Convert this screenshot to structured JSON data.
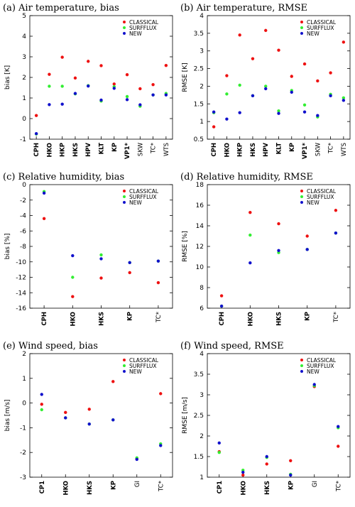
{
  "legend": {
    "entries": [
      {
        "name": "CLASSICAL",
        "color": "#ee1111"
      },
      {
        "name": "SURFFLUX",
        "color": "#33ee33"
      },
      {
        "name": "NEW",
        "color": "#1111cc"
      }
    ]
  },
  "chart_data": [
    {
      "type": "scatter",
      "title": "(a) Air temperature, bias",
      "ylabel": "bias [K]",
      "ylim": [
        -1,
        5
      ],
      "yticks": [
        -1,
        0,
        1,
        2,
        3,
        4,
        5
      ],
      "categories": [
        "CPH",
        "HKO",
        "HKP",
        "HKS",
        "HPV",
        "KLT",
        "KP",
        "VP1*",
        "SKW",
        "TC*",
        "WTS"
      ],
      "bold": [
        true,
        true,
        true,
        true,
        true,
        true,
        true,
        true,
        false,
        false,
        false
      ],
      "series": [
        {
          "name": "CLASSICAL",
          "values": [
            0.15,
            2.15,
            2.98,
            1.97,
            2.78,
            2.57,
            1.68,
            2.13,
            1.45,
            1.65,
            2.58
          ]
        },
        {
          "name": "SURFFLUX",
          "values": [
            -0.75,
            1.57,
            1.57,
            1.2,
            1.6,
            0.85,
            1.55,
            1.07,
            0.6,
            1.15,
            1.22
          ]
        },
        {
          "name": "NEW",
          "values": [
            -0.73,
            0.68,
            0.7,
            1.22,
            1.58,
            0.9,
            1.47,
            0.92,
            0.67,
            1.15,
            1.15
          ]
        }
      ]
    },
    {
      "type": "scatter",
      "title": "(b) Air temperature, RMSE",
      "ylabel": "RMSE [K]",
      "ylim": [
        0.5,
        4
      ],
      "yticks": [
        0.5,
        1,
        1.5,
        2,
        2.5,
        3,
        3.5,
        4
      ],
      "categories": [
        "CPH",
        "HKO",
        "HKP",
        "HKS",
        "HPV",
        "KLT",
        "KP",
        "VP1*",
        "SKW",
        "TC*",
        "WTS"
      ],
      "bold": [
        true,
        true,
        true,
        true,
        true,
        true,
        true,
        true,
        false,
        false,
        false
      ],
      "series": [
        {
          "name": "CLASSICAL",
          "values": [
            0.85,
            2.3,
            3.45,
            2.78,
            3.58,
            3.02,
            2.28,
            2.63,
            2.15,
            2.38,
            3.25
          ]
        },
        {
          "name": "SURFFLUX",
          "values": [
            1.25,
            1.78,
            2.03,
            1.73,
            2.0,
            1.3,
            1.88,
            1.47,
            1.13,
            1.77,
            1.67
          ]
        },
        {
          "name": "NEW",
          "values": [
            1.27,
            1.07,
            1.25,
            1.73,
            1.93,
            1.23,
            1.83,
            1.27,
            1.17,
            1.73,
            1.6
          ]
        }
      ]
    },
    {
      "type": "scatter",
      "title": "(c) Relative humidity, bias",
      "ylabel": "bias [%]",
      "ylim": [
        -16,
        0
      ],
      "yticks": [
        -16,
        -14,
        -12,
        -10,
        -8,
        -6,
        -4,
        -2,
        0
      ],
      "categories": [
        "CPH",
        "HKO",
        "HKS",
        "KP",
        "TC*"
      ],
      "bold": [
        true,
        true,
        true,
        true,
        false
      ],
      "series": [
        {
          "name": "CLASSICAL",
          "values": [
            -4.4,
            -14.5,
            -12.1,
            -11.4,
            -12.7
          ]
        },
        {
          "name": "SURFFLUX",
          "values": [
            -0.9,
            -12.0,
            -9.1,
            -10.1,
            -9.9
          ]
        },
        {
          "name": "NEW",
          "values": [
            -1.1,
            -9.2,
            -9.6,
            -10.1,
            -9.9
          ]
        }
      ]
    },
    {
      "type": "scatter",
      "title": "(d) Relative humidity, RMSE",
      "ylabel": "RMSE [%]",
      "ylim": [
        6,
        18
      ],
      "yticks": [
        6,
        8,
        10,
        12,
        14,
        16,
        18
      ],
      "categories": [
        "CPH",
        "HKO",
        "HKS",
        "KP",
        "TC*"
      ],
      "bold": [
        true,
        true,
        true,
        true,
        false
      ],
      "series": [
        {
          "name": "CLASSICAL",
          "values": [
            7.2,
            15.3,
            14.2,
            13.0,
            15.5
          ]
        },
        {
          "name": "SURFFLUX",
          "values": [
            6.2,
            13.1,
            11.4,
            11.7,
            13.3
          ]
        },
        {
          "name": "NEW",
          "values": [
            6.2,
            10.4,
            11.6,
            11.7,
            13.3
          ]
        }
      ]
    },
    {
      "type": "scatter",
      "title": "(e) Wind speed, bias",
      "ylabel": "bias [m/s]",
      "ylim": [
        -3,
        2
      ],
      "yticks": [
        -3,
        -2,
        -1,
        0,
        1,
        2
      ],
      "categories": [
        "CP1",
        "HKO",
        "HKS",
        "KP",
        "GI",
        "TC*"
      ],
      "bold": [
        true,
        true,
        true,
        true,
        false,
        false
      ],
      "series": [
        {
          "name": "CLASSICAL",
          "values": [
            -0.05,
            -0.38,
            -0.25,
            0.87,
            -2.25,
            0.38
          ]
        },
        {
          "name": "SURFFLUX",
          "values": [
            -0.27,
            -0.6,
            -0.85,
            -0.68,
            -2.22,
            -1.65
          ]
        },
        {
          "name": "NEW",
          "values": [
            0.35,
            -0.6,
            -0.85,
            -0.68,
            -2.28,
            -1.72
          ]
        }
      ]
    },
    {
      "type": "scatter",
      "title": "(f) Wind speed, RMSE",
      "ylabel": "RMSE [m/s]",
      "ylim": [
        1,
        4
      ],
      "yticks": [
        1,
        1.5,
        2,
        2.5,
        3,
        3.5,
        4
      ],
      "categories": [
        "CP1",
        "HKO",
        "HKS",
        "KP",
        "GI",
        "TC*"
      ],
      "bold": [
        true,
        true,
        true,
        true,
        false,
        false
      ],
      "series": [
        {
          "name": "CLASSICAL",
          "values": [
            1.62,
            1.05,
            1.32,
            1.4,
            3.2,
            1.75
          ]
        },
        {
          "name": "SURFFLUX",
          "values": [
            1.6,
            1.17,
            1.48,
            1.07,
            3.22,
            2.2
          ]
        },
        {
          "name": "NEW",
          "values": [
            1.83,
            1.12,
            1.5,
            1.05,
            3.25,
            2.23
          ]
        }
      ]
    }
  ]
}
